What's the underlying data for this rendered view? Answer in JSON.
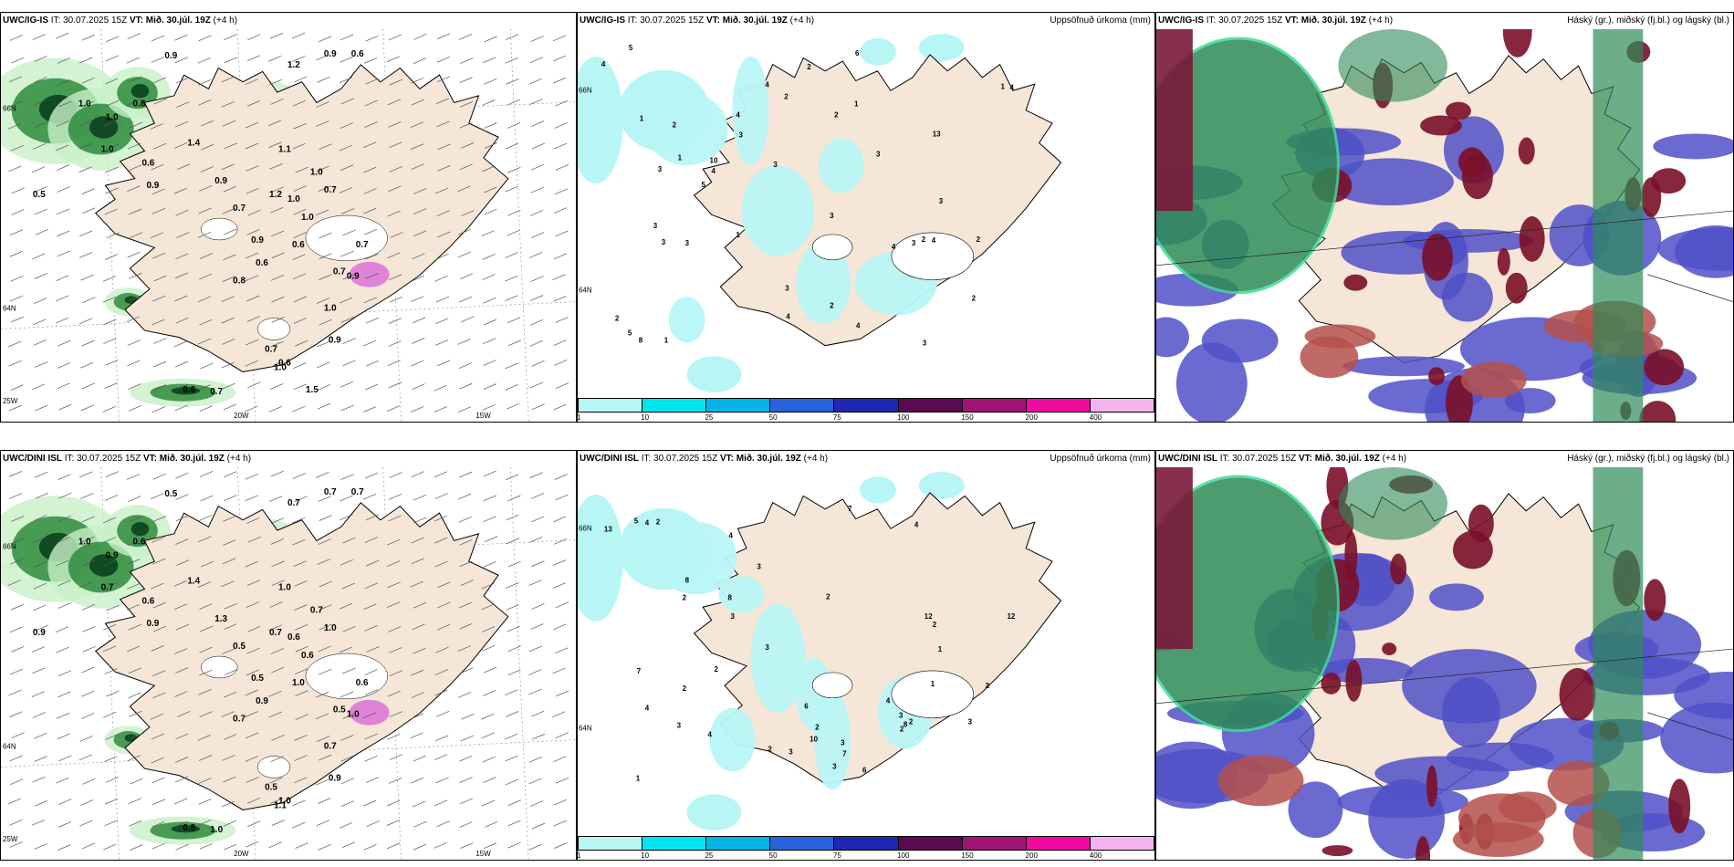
{
  "rows": [
    {
      "model": "UWC/IG-IS",
      "it_label": "IT:",
      "it_value": "30.07.2025 15Z",
      "vt_label": "VT:",
      "vt_value": "Mið. 30.júl. 19Z",
      "lead": "(+4 h)"
    },
    {
      "model": "UWC/DINI ISL",
      "it_label": "IT:",
      "it_value": "30.07.2025 15Z",
      "vt_label": "VT:",
      "vt_value": "Mið. 30.júl. 19Z",
      "lead": "(+4 h)"
    }
  ],
  "precip_title": "Uppsöfnuð úrkoma (mm)",
  "cloud_title": "Háský (gr.), miðský (fj.bl.) og lágský (bl.)",
  "axis_labels": {
    "lon_20": "20W",
    "lon_15": "15W",
    "lat_66": "66N",
    "lat_64": "64N",
    "lat_25": "25W"
  },
  "colorbar": {
    "ticks": [
      "1",
      "10",
      "25",
      "50",
      "75",
      "100",
      "150",
      "200",
      "400"
    ],
    "colors": [
      "#b8f6f6",
      "#00e6f0",
      "#00b4e6",
      "#2a64dc",
      "#1e28b4",
      "#5a0a50",
      "#a01478",
      "#f00aa0",
      "#f5b4f0"
    ]
  },
  "colors": {
    "land": "#f5e6d7",
    "precip_light": "#b8f6f6",
    "cloud_green": "#2e8b57",
    "cloud_blue": "#5050c8",
    "cloud_maroon": "#7a1028",
    "cloud_red": "#b4504b",
    "wind_green_1": "#c8f0c8",
    "wind_green_2": "#2e8b3c",
    "wind_green_3": "#0f4a23"
  },
  "wind_values_top": [
    "0.9",
    "1.2",
    "0.9",
    "0.6",
    "1.0",
    "1.0",
    "0.8",
    "1.0",
    "1.4",
    "0.6",
    "0.9",
    "0.9",
    "1.1",
    "1.0",
    "0.7",
    "0.5",
    "0.7",
    "1.2",
    "0.9",
    "1.0",
    "1.0",
    "0.6",
    "0.8",
    "0.7",
    "0.9",
    "0.6",
    "1.0",
    "0.7",
    "0.9",
    "0.6",
    "0.7",
    "1.0",
    "0.6",
    "0.7",
    "1.5"
  ],
  "wind_values_bottom": [
    "0.5",
    "0.7",
    "0.7",
    "0.7",
    "1.0",
    "0.9",
    "0.6",
    "0.7",
    "1.4",
    "0.6",
    "0.9",
    "1.3",
    "1.0",
    "0.7",
    "0.5",
    "0.9",
    "1.0",
    "0.7",
    "0.5",
    "0.6",
    "0.6",
    "1.0",
    "0.7",
    "0.6",
    "1.0",
    "0.9",
    "0.7",
    "0.5",
    "0.9",
    "1.0",
    "0.5",
    "1.1",
    "0.8",
    "1.0"
  ],
  "precip_values_top": [
    "2",
    "4",
    "1",
    "3",
    "1",
    "3",
    "13",
    "2",
    "2",
    "2",
    "3",
    "4",
    "3",
    "4",
    "5",
    "3",
    "1",
    "3",
    "1",
    "2",
    "3",
    "3",
    "10",
    "6",
    "4",
    "5",
    "3",
    "4",
    "2",
    "2",
    "3",
    "2",
    "5",
    "4",
    "4",
    "8",
    "3",
    "1",
    "2",
    "3",
    "4",
    "4",
    "1"
  ],
  "precip_values_bottom": [
    "2",
    "2",
    "2",
    "13",
    "12",
    "4",
    "10",
    "7",
    "12",
    "8",
    "2",
    "3",
    "3",
    "6",
    "4",
    "7",
    "3",
    "8",
    "2",
    "2",
    "2",
    "1",
    "2",
    "3",
    "3",
    "4",
    "7",
    "3",
    "4",
    "8",
    "5",
    "4",
    "1",
    "6",
    "2",
    "3",
    "4",
    "2",
    "3",
    "2",
    "1",
    "3"
  ]
}
